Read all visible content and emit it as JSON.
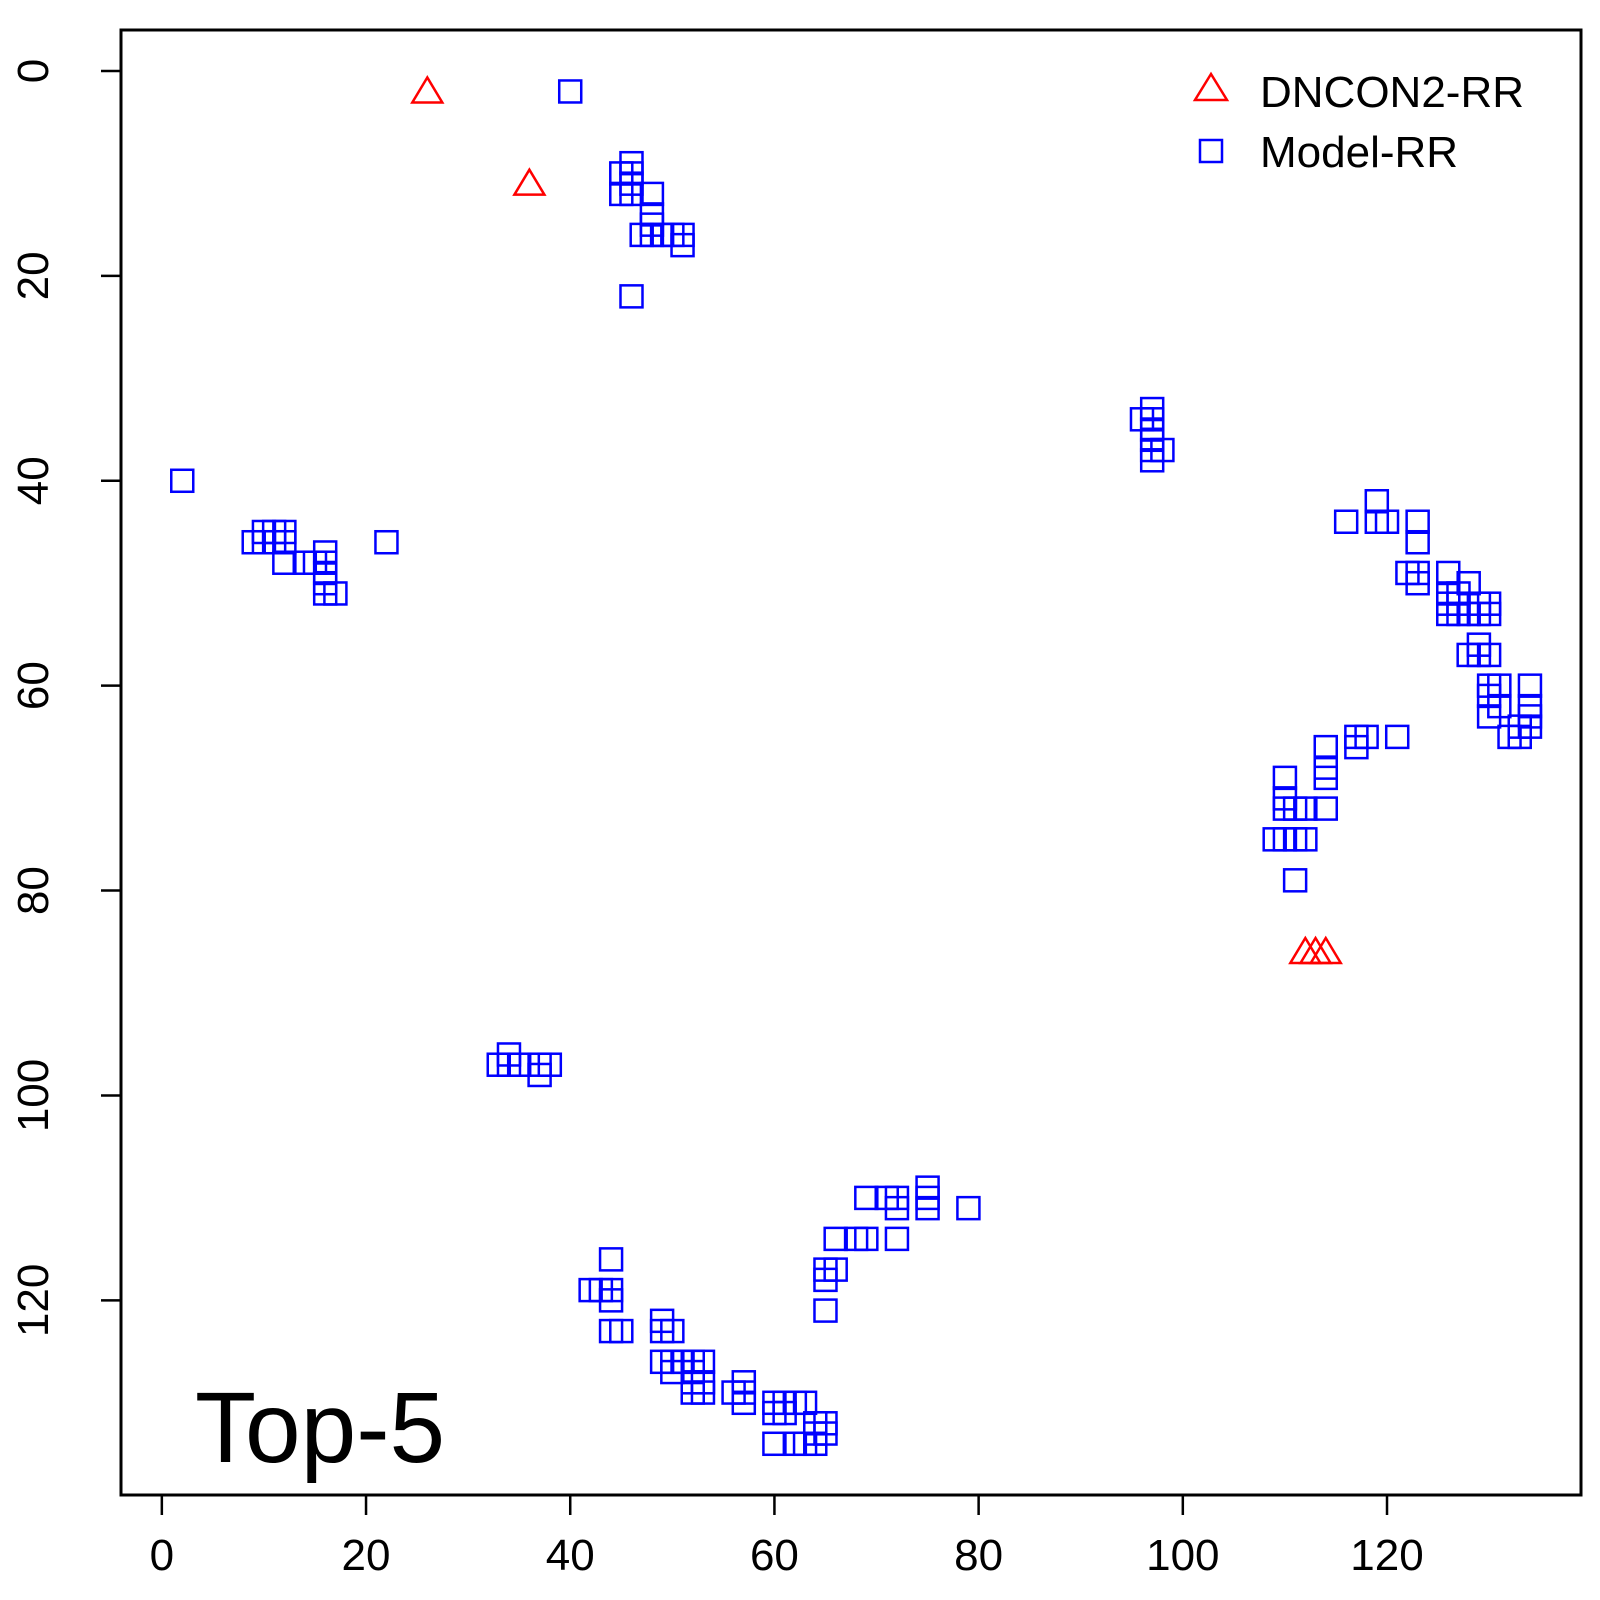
{
  "chart_data": {
    "type": "scatter",
    "annotation": "Top-5",
    "xlim": [
      -4,
      139
    ],
    "ylim": [
      -4,
      139
    ],
    "y_reversed": true,
    "x_ticks": [
      "0",
      "20",
      "40",
      "60",
      "80",
      "100",
      "120"
    ],
    "y_ticks": [
      "0",
      "20",
      "40",
      "60",
      "80",
      "100",
      "120"
    ],
    "grid": false,
    "legend_position": "top-right",
    "series": [
      {
        "name": "DNCON2-RR",
        "marker": "triangle",
        "color": "#ff0000",
        "points": [
          [
            26,
            2
          ],
          [
            36,
            11
          ],
          [
            112,
            86
          ],
          [
            113,
            86
          ],
          [
            114,
            86
          ]
        ]
      },
      {
        "name": "Model-RR",
        "marker": "square",
        "color": "#0000ff",
        "points": [
          [
            40,
            2
          ],
          [
            45,
            10
          ],
          [
            45,
            12
          ],
          [
            46,
            9
          ],
          [
            46,
            10
          ],
          [
            46,
            11
          ],
          [
            46,
            12
          ],
          [
            48,
            12
          ],
          [
            48,
            14
          ],
          [
            48,
            15
          ],
          [
            47,
            16
          ],
          [
            48,
            16
          ],
          [
            49,
            16
          ],
          [
            50,
            16
          ],
          [
            51,
            16
          ],
          [
            51,
            17
          ],
          [
            46,
            22
          ],
          [
            2,
            40
          ],
          [
            9,
            46
          ],
          [
            10,
            45
          ],
          [
            10,
            46
          ],
          [
            11,
            45
          ],
          [
            11,
            46
          ],
          [
            12,
            45
          ],
          [
            12,
            46
          ],
          [
            12,
            48
          ],
          [
            14,
            48
          ],
          [
            15,
            48
          ],
          [
            16,
            47
          ],
          [
            16,
            48
          ],
          [
            16,
            49
          ],
          [
            16,
            50
          ],
          [
            16,
            51
          ],
          [
            17,
            51
          ],
          [
            22,
            46
          ],
          [
            97,
            33
          ],
          [
            97,
            34
          ],
          [
            97,
            35
          ],
          [
            96,
            34
          ],
          [
            97,
            36
          ],
          [
            97,
            37
          ],
          [
            98,
            37
          ],
          [
            97,
            38
          ],
          [
            116,
            44
          ],
          [
            119,
            42
          ],
          [
            119,
            44
          ],
          [
            120,
            44
          ],
          [
            123,
            44
          ],
          [
            123,
            46
          ],
          [
            122,
            49
          ],
          [
            123,
            49
          ],
          [
            123,
            50
          ],
          [
            126,
            49
          ],
          [
            126,
            51
          ],
          [
            126,
            52
          ],
          [
            126,
            53
          ],
          [
            127,
            51
          ],
          [
            127,
            52
          ],
          [
            127,
            53
          ],
          [
            128,
            50
          ],
          [
            128,
            53
          ],
          [
            129,
            52
          ],
          [
            130,
            52
          ],
          [
            129,
            53
          ],
          [
            130,
            53
          ],
          [
            128,
            57
          ],
          [
            129,
            56
          ],
          [
            129,
            57
          ],
          [
            130,
            57
          ],
          [
            130,
            60
          ],
          [
            131,
            60
          ],
          [
            130,
            61
          ],
          [
            131,
            62
          ],
          [
            130,
            63
          ],
          [
            132,
            65
          ],
          [
            133,
            64
          ],
          [
            133,
            65
          ],
          [
            134,
            60
          ],
          [
            134,
            62
          ],
          [
            134,
            63
          ],
          [
            134,
            64
          ],
          [
            117,
            65
          ],
          [
            117,
            66
          ],
          [
            118,
            65
          ],
          [
            121,
            65
          ],
          [
            114,
            66
          ],
          [
            114,
            68
          ],
          [
            114,
            69
          ],
          [
            114,
            72
          ],
          [
            110,
            69
          ],
          [
            110,
            71
          ],
          [
            110,
            72
          ],
          [
            111,
            72
          ],
          [
            112,
            72
          ],
          [
            109,
            75
          ],
          [
            110,
            75
          ],
          [
            111,
            75
          ],
          [
            112,
            75
          ],
          [
            111,
            79
          ],
          [
            33,
            97
          ],
          [
            34,
            96
          ],
          [
            34,
            97
          ],
          [
            35,
            97
          ],
          [
            37,
            97
          ],
          [
            38,
            97
          ],
          [
            37,
            98
          ],
          [
            44,
            116
          ],
          [
            42,
            119
          ],
          [
            43,
            119
          ],
          [
            44,
            119
          ],
          [
            44,
            120
          ],
          [
            44,
            123
          ],
          [
            45,
            123
          ],
          [
            49,
            122
          ],
          [
            49,
            123
          ],
          [
            50,
            123
          ],
          [
            49,
            126
          ],
          [
            50,
            126
          ],
          [
            50,
            127
          ],
          [
            51,
            126
          ],
          [
            52,
            126
          ],
          [
            52,
            127
          ],
          [
            53,
            126
          ],
          [
            52,
            128
          ],
          [
            53,
            128
          ],
          [
            52,
            129
          ],
          [
            53,
            129
          ],
          [
            56,
            129
          ],
          [
            57,
            128
          ],
          [
            57,
            129
          ],
          [
            57,
            130
          ],
          [
            60,
            130
          ],
          [
            60,
            131
          ],
          [
            61,
            130
          ],
          [
            61,
            131
          ],
          [
            62,
            130
          ],
          [
            63,
            130
          ],
          [
            60,
            134
          ],
          [
            62,
            134
          ],
          [
            63,
            134
          ],
          [
            64,
            134
          ],
          [
            64,
            132
          ],
          [
            64,
            133
          ],
          [
            65,
            132
          ],
          [
            65,
            133
          ],
          [
            65,
            118
          ],
          [
            65,
            121
          ],
          [
            66,
            114
          ],
          [
            66,
            117
          ],
          [
            65,
            117
          ],
          [
            68,
            114
          ],
          [
            69,
            114
          ],
          [
            69,
            110
          ],
          [
            71,
            110
          ],
          [
            72,
            110
          ],
          [
            72,
            111
          ],
          [
            72,
            114
          ],
          [
            75,
            109
          ],
          [
            75,
            110
          ],
          [
            75,
            111
          ],
          [
            79,
            111
          ]
        ]
      }
    ]
  }
}
